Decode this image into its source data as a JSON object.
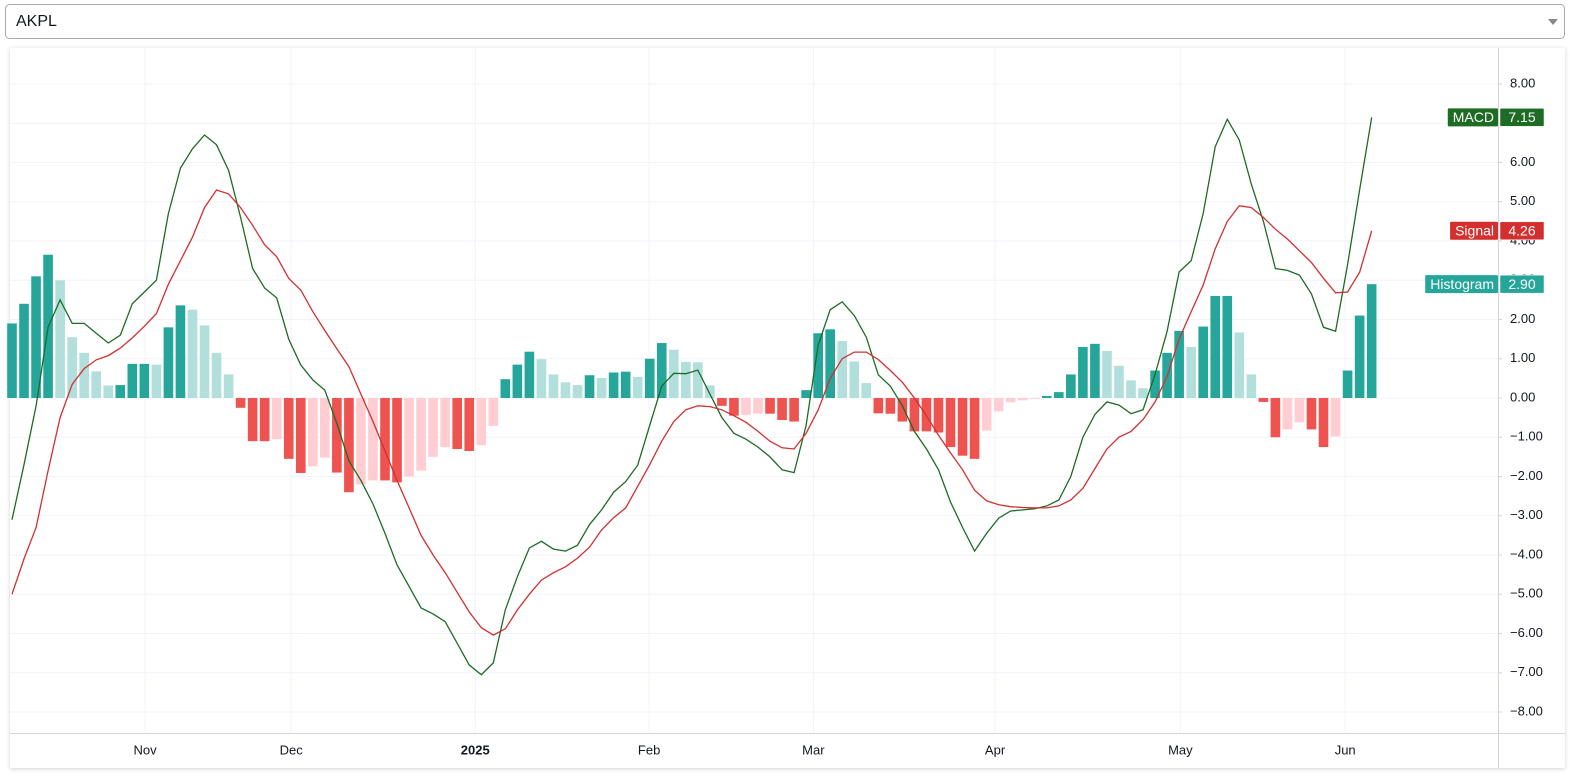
{
  "selector": {
    "value": "AKPL"
  },
  "chart_data": {
    "type": "line",
    "x": [
      0,
      1,
      2,
      3,
      4,
      5,
      6,
      7,
      8,
      9,
      10,
      11,
      12,
      13,
      14,
      15,
      16,
      17,
      18,
      19,
      20,
      21,
      22,
      23,
      24,
      25,
      26,
      27,
      28,
      29,
      30,
      31,
      32,
      33,
      34,
      35,
      36,
      37,
      38,
      39,
      40,
      41,
      42,
      43,
      44,
      45,
      46,
      47,
      48,
      49,
      50,
      51,
      52,
      53,
      54,
      55,
      56,
      57,
      58,
      59,
      60,
      61,
      62,
      63,
      64,
      65,
      66,
      67,
      68,
      69,
      70,
      71,
      72,
      73,
      74,
      75,
      76,
      77,
      78,
      79,
      80,
      81,
      82,
      83,
      84,
      85,
      86,
      87,
      88,
      89,
      90,
      91,
      92,
      93,
      94,
      95,
      96,
      97,
      98,
      99,
      100,
      101,
      102,
      103,
      104,
      105,
      106,
      107,
      108,
      109,
      110,
      111,
      112,
      113
    ],
    "xlim": [
      -0.166,
      123.5
    ],
    "xticks": [
      {
        "value": 11.06,
        "label": "Nov"
      },
      {
        "value": 23.2,
        "label": "Dec"
      },
      {
        "value": 38.5,
        "label": "2025",
        "bold": true
      },
      {
        "value": 52.95,
        "label": "Feb"
      },
      {
        "value": 66.6,
        "label": "Mar"
      },
      {
        "value": 81.7,
        "label": "Apr"
      },
      {
        "value": 97.1,
        "label": "May"
      },
      {
        "value": 110.8,
        "label": "Jun"
      }
    ],
    "ylim": [
      -8.535,
      8.917
    ],
    "yticks": [
      {
        "value": -8,
        "label": "−8.00"
      },
      {
        "value": -7,
        "label": "−7.00"
      },
      {
        "value": -6,
        "label": "−6.00"
      },
      {
        "value": -5,
        "label": "−5.00"
      },
      {
        "value": -4,
        "label": "−4.00"
      },
      {
        "value": -3,
        "label": "−3.00"
      },
      {
        "value": -2,
        "label": "−2.00"
      },
      {
        "value": -1,
        "label": "−1.00"
      },
      {
        "value": 0,
        "label": "0.00"
      },
      {
        "value": 1,
        "label": "1.00"
      },
      {
        "value": 2,
        "label": "2.00"
      },
      {
        "value": 3,
        "label": "3.00"
      },
      {
        "value": 4,
        "label": "4.00"
      },
      {
        "value": 5,
        "label": "5.00"
      },
      {
        "value": 6,
        "label": "6.00"
      },
      {
        "value": 7,
        "label": "7.00"
      },
      {
        "value": 8,
        "label": "8.00"
      }
    ],
    "grid": true,
    "series": [
      {
        "name": "MACD",
        "type": "line",
        "color": "#1e6b24",
        "last_label": "7.15",
        "values": [
          -3.1,
          -1.7,
          -0.2,
          1.8,
          2.5,
          1.9,
          1.9,
          1.65,
          1.4,
          1.6,
          2.4,
          2.7,
          3.0,
          4.7,
          5.86,
          6.35,
          6.7,
          6.45,
          5.8,
          4.6,
          3.3,
          2.8,
          2.55,
          1.5,
          0.84,
          0.46,
          0.2,
          -0.65,
          -1.6,
          -2.1,
          -2.7,
          -3.45,
          -4.25,
          -4.8,
          -5.35,
          -5.5,
          -5.7,
          -6.25,
          -6.8,
          -7.05,
          -6.75,
          -5.4,
          -4.55,
          -3.82,
          -3.65,
          -3.85,
          -3.9,
          -3.75,
          -3.22,
          -2.85,
          -2.4,
          -2.13,
          -1.71,
          -0.7,
          0.3,
          0.63,
          0.62,
          0.71,
          0.1,
          -0.5,
          -0.9,
          -1.05,
          -1.25,
          -1.5,
          -1.83,
          -1.9,
          -0.7,
          1.35,
          2.25,
          2.45,
          2.1,
          1.55,
          0.59,
          0.3,
          -0.2,
          -0.85,
          -1.3,
          -1.83,
          -2.65,
          -3.3,
          -3.9,
          -3.45,
          -3.06,
          -2.88,
          -2.85,
          -2.82,
          -2.75,
          -2.6,
          -2.0,
          -1.0,
          -0.42,
          -0.1,
          -0.18,
          -0.4,
          -0.3,
          0.6,
          1.7,
          3.21,
          3.5,
          4.7,
          6.4,
          7.1,
          6.57,
          5.45,
          4.5,
          3.3,
          3.25,
          3.13,
          2.65,
          1.8,
          1.7,
          3.4,
          5.3,
          7.15
        ]
      },
      {
        "name": "Signal",
        "type": "line",
        "color": "#d32f2f",
        "last_label": "4.26",
        "values": [
          -5.0,
          -4.1,
          -3.3,
          -1.85,
          -0.5,
          0.35,
          0.75,
          0.97,
          1.08,
          1.27,
          1.53,
          1.83,
          2.15,
          2.9,
          3.5,
          4.1,
          4.85,
          5.3,
          5.2,
          4.85,
          4.4,
          3.9,
          3.6,
          3.05,
          2.75,
          2.2,
          1.72,
          1.25,
          0.8,
          0.1,
          -0.6,
          -1.35,
          -2.1,
          -2.8,
          -3.5,
          -4.0,
          -4.45,
          -4.95,
          -5.45,
          -5.85,
          -6.04,
          -5.88,
          -5.4,
          -5.0,
          -4.64,
          -4.45,
          -4.3,
          -4.08,
          -3.8,
          -3.36,
          -3.05,
          -2.8,
          -2.25,
          -1.7,
          -1.1,
          -0.6,
          -0.3,
          -0.2,
          -0.22,
          -0.3,
          -0.45,
          -0.62,
          -0.85,
          -1.1,
          -1.27,
          -1.3,
          -0.9,
          -0.3,
          0.5,
          1.0,
          1.17,
          1.17,
          0.98,
          0.7,
          0.4,
          0.0,
          -0.45,
          -0.95,
          -1.4,
          -1.83,
          -2.35,
          -2.62,
          -2.72,
          -2.77,
          -2.79,
          -2.8,
          -2.8,
          -2.75,
          -2.6,
          -2.3,
          -1.8,
          -1.3,
          -1.0,
          -0.85,
          -0.55,
          -0.1,
          0.55,
          1.5,
          2.2,
          2.88,
          3.8,
          4.5,
          4.9,
          4.85,
          4.6,
          4.3,
          4.05,
          3.75,
          3.45,
          3.05,
          2.68,
          2.7,
          3.2,
          4.26
        ]
      },
      {
        "name": "Histogram",
        "type": "bar",
        "color": "#26a69a",
        "last_label": "2.90",
        "colors": {
          "up_rising": "#26a69a",
          "up_falling": "#b2dfdb",
          "down_falling": "#ef5350",
          "down_rising": "#ffcdd2"
        },
        "values": [
          1.9,
          2.4,
          3.1,
          3.65,
          3.0,
          1.55,
          1.15,
          0.68,
          0.32,
          0.33,
          0.87,
          0.87,
          0.85,
          1.8,
          2.36,
          2.25,
          1.85,
          1.15,
          0.6,
          -0.25,
          -1.1,
          -1.1,
          -1.05,
          -1.55,
          -1.91,
          -1.74,
          -1.52,
          -1.9,
          -2.4,
          -2.2,
          -2.1,
          -2.1,
          -2.15,
          -2.0,
          -1.85,
          -1.5,
          -1.25,
          -1.3,
          -1.35,
          -1.2,
          -0.71,
          0.48,
          0.85,
          1.18,
          0.99,
          0.6,
          0.4,
          0.33,
          0.58,
          0.51,
          0.65,
          0.67,
          0.54,
          1.0,
          1.4,
          1.23,
          0.92,
          0.91,
          0.32,
          -0.2,
          -0.45,
          -0.43,
          -0.4,
          -0.4,
          -0.56,
          -0.6,
          0.2,
          1.65,
          1.75,
          1.45,
          0.93,
          0.38,
          -0.39,
          -0.4,
          -0.6,
          -0.85,
          -0.85,
          -0.88,
          -1.25,
          -1.47,
          -1.55,
          -0.83,
          -0.34,
          -0.11,
          -0.06,
          -0.02,
          0.05,
          0.15,
          0.6,
          1.3,
          1.38,
          1.2,
          0.82,
          0.45,
          0.25,
          0.7,
          1.15,
          1.71,
          1.3,
          1.82,
          2.6,
          2.6,
          1.67,
          0.6,
          -0.1,
          -1.0,
          -0.8,
          -0.62,
          -0.8,
          -1.25,
          -0.98,
          0.7,
          2.1,
          2.9
        ]
      }
    ]
  }
}
